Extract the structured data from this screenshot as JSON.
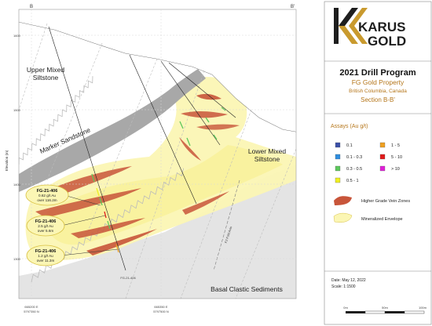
{
  "section": {
    "left_label": "B",
    "right_label": "B'"
  },
  "axis": {
    "ylabel": "Elevation (m)",
    "y_ticks": [
      "1600",
      "1500",
      "1400",
      "1300"
    ],
    "x_ticks": [
      {
        "easting": "665200 E",
        "northing": "5797350 N"
      },
      {
        "easting": "665350 E",
        "northing": "5797500 N"
      }
    ]
  },
  "units": {
    "upper_mixed": [
      "Upper Mixed",
      "Siltstone"
    ],
    "marker": "Marker Sandstone",
    "lower_mixed": [
      "Lower Mixed",
      "Siltstone"
    ],
    "basal": "Basal Clastic Sediments",
    "fold_axis": "F2 Fold Axis"
  },
  "drillhole": {
    "label": "FG-21-406"
  },
  "callouts": [
    {
      "title": "FG-21-406",
      "line1": "0.62 g/t Au",
      "line2": "over 116.2m"
    },
    {
      "title": "FG-21-406",
      "line1": "2.5 g/t Au",
      "line2": "over 5.6m"
    },
    {
      "title": "FG-21-406",
      "line1": "1.2 g/t Au",
      "line2": "over 11.3m"
    }
  ],
  "logo": {
    "line1": "KARUS",
    "line2": "GOLD",
    "colors": {
      "gold": "#c99a2e",
      "dark": "#1e1e1e"
    }
  },
  "title": {
    "program": "2021 Drill Program",
    "property": "FG Gold Property",
    "location": "British Columbia, Canada",
    "section": "Section B-B'"
  },
  "legend": {
    "heading": "Assays (Au g/t)",
    "assays": [
      {
        "label": "0.1",
        "color": "#3b4fa8"
      },
      {
        "label": "1 - 5",
        "color": "#f0a020"
      },
      {
        "label": "0.1 - 0.3",
        "color": "#2f8ee0"
      },
      {
        "label": "5 - 10",
        "color": "#e21b1b"
      },
      {
        "label": "0.3 - 0.5",
        "color": "#5cc85c"
      },
      {
        "label": "> 10",
        "color": "#e020d8"
      },
      {
        "label": "0.5 - 1",
        "color": "#f0f020"
      }
    ],
    "zones": [
      {
        "label": "Higher Grade Vein Zones",
        "color": "#c8553a"
      },
      {
        "label": "Mineralized Envelope",
        "color": "#fbf6b4"
      }
    ]
  },
  "meta": {
    "date": "Date: May 12, 2022",
    "scale": "Scale: 1:1500",
    "scalebar": {
      "start": "0m",
      "mid": "50m",
      "end": "100m"
    }
  }
}
